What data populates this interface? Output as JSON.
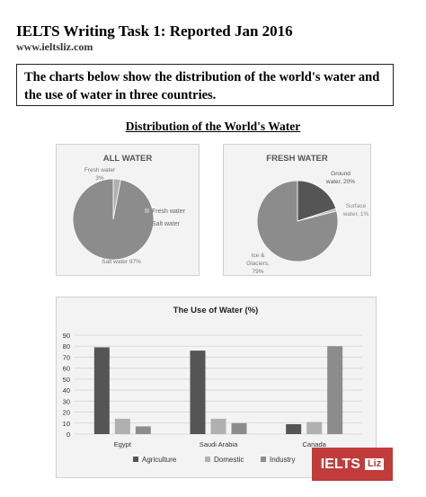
{
  "header": {
    "title": "IELTS Writing Task 1:  Reported Jan 2016",
    "website": "www.ieltsliz.com",
    "task_text": "The charts below show the distribution of the world's water and the use of water in three countries.",
    "section_heading": "Distribution of the World's Water"
  },
  "logo": {
    "main": "IELTS",
    "sub": "Liz"
  },
  "colors": {
    "dark": "#555555",
    "mid": "#8c8c8c",
    "light": "#b0b0b0",
    "accent": "#c23b3b"
  },
  "chart_data": [
    {
      "type": "pie",
      "title": "ALL WATER",
      "labels": [
        "Fresh water",
        "Salt water"
      ],
      "values": [
        3,
        97
      ],
      "slice_labels": [
        "Fresh water\n3%",
        "Salt water 97%"
      ],
      "legend": [
        "Fresh water",
        "Salt water"
      ],
      "legend_position": "right"
    },
    {
      "type": "pie",
      "title": "FRESH WATER",
      "labels": [
        "Ground water",
        "Surface water",
        "Ice & Glaciers"
      ],
      "values": [
        20,
        1,
        79
      ],
      "slice_labels": [
        "Ground\nwater, 20%",
        "Surface\nwater, 1%",
        "Ice &\nGlaciers,\n79%"
      ]
    },
    {
      "type": "bar",
      "title": "The Use of Water (%)",
      "categories": [
        "Egypt",
        "Saudi Arabia",
        "Canada"
      ],
      "series": [
        {
          "name": "Agriculture",
          "values": [
            79,
            76,
            9
          ]
        },
        {
          "name": "Domestic",
          "values": [
            14,
            14,
            11
          ]
        },
        {
          "name": "Industry",
          "values": [
            7,
            10,
            80
          ]
        }
      ],
      "ylim": [
        0,
        90
      ],
      "yticks": [
        0,
        10,
        20,
        30,
        40,
        50,
        60,
        70,
        80,
        90
      ],
      "grid": true,
      "legend_position": "bottom"
    }
  ]
}
